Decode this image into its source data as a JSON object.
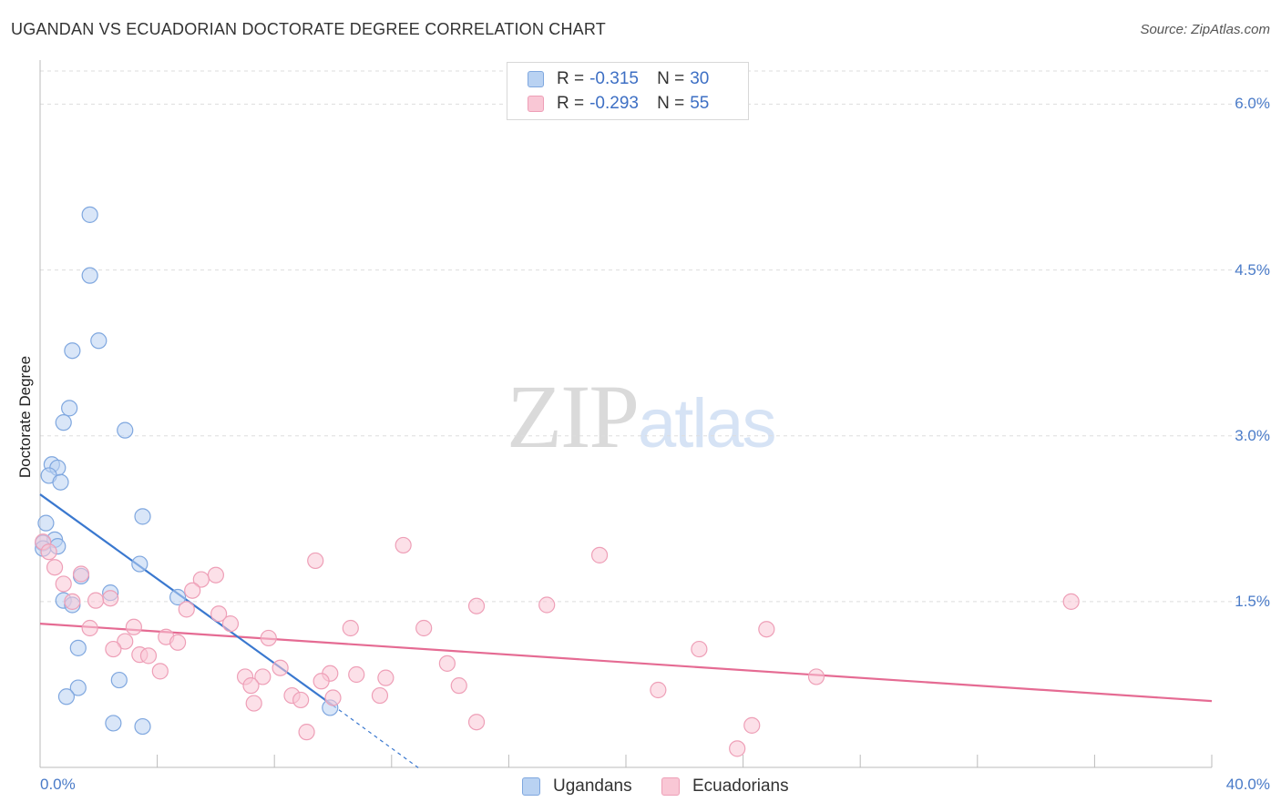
{
  "header": {
    "title": "UGANDAN VS ECUADORIAN DOCTORATE DEGREE CORRELATION CHART",
    "source": "Source: ZipAtlas.com"
  },
  "watermark": {
    "zip": "ZIP",
    "atlas": "atlas"
  },
  "legend": {
    "rows": [
      {
        "r_label": "R =",
        "r_value": "-0.315",
        "n_label": "N =",
        "n_value": "30"
      },
      {
        "r_label": "R =",
        "r_value": "-0.293",
        "n_label": "N =",
        "n_value": "55"
      }
    ],
    "series_names": [
      "Ugandans",
      "Ecuadorians"
    ]
  },
  "colors": {
    "blue_fill": "#b9d2f2",
    "blue_stroke": "#7fa7df",
    "blue_line": "#3a78cf",
    "pink_fill": "#f9c7d5",
    "pink_stroke": "#ee9fb7",
    "pink_line": "#e56b93",
    "grid": "#dddddd",
    "tick_text": "#4a7bc8"
  },
  "chart_data": {
    "type": "scatter",
    "title": "UGANDAN VS ECUADORIAN DOCTORATE DEGREE CORRELATION CHART",
    "xlabel": "",
    "ylabel": "Doctorate Degree",
    "xlim": [
      0,
      40
    ],
    "ylim": [
      0,
      6.3
    ],
    "x_tick_labels": [
      "0.0%",
      "40.0%"
    ],
    "y_ticks": [
      1.5,
      3.0,
      4.5,
      6.0
    ],
    "y_tick_labels": [
      "1.5%",
      "3.0%",
      "4.5%",
      "6.0%"
    ],
    "grid": true,
    "series": [
      {
        "name": "Ugandans",
        "color": "#7fa7df",
        "points": [
          [
            1.7,
            5.0
          ],
          [
            1.7,
            4.45
          ],
          [
            2.0,
            3.86
          ],
          [
            1.1,
            3.77
          ],
          [
            1.0,
            3.25
          ],
          [
            0.8,
            3.12
          ],
          [
            2.9,
            3.05
          ],
          [
            0.4,
            2.74
          ],
          [
            0.6,
            2.71
          ],
          [
            0.3,
            2.64
          ],
          [
            0.7,
            2.58
          ],
          [
            3.5,
            2.27
          ],
          [
            0.2,
            2.21
          ],
          [
            0.5,
            2.06
          ],
          [
            0.1,
            2.03
          ],
          [
            0.1,
            1.98
          ],
          [
            0.6,
            2.0
          ],
          [
            3.4,
            1.84
          ],
          [
            1.4,
            1.73
          ],
          [
            2.4,
            1.58
          ],
          [
            4.7,
            1.54
          ],
          [
            0.8,
            1.51
          ],
          [
            1.1,
            1.47
          ],
          [
            1.3,
            1.08
          ],
          [
            2.7,
            0.79
          ],
          [
            1.3,
            0.72
          ],
          [
            0.9,
            0.64
          ],
          [
            9.9,
            0.54
          ],
          [
            2.5,
            0.4
          ],
          [
            3.5,
            0.37
          ]
        ]
      },
      {
        "name": "Ecuadorians",
        "color": "#ee9fb7",
        "points": [
          [
            0.1,
            2.04
          ],
          [
            0.3,
            1.95
          ],
          [
            0.5,
            1.81
          ],
          [
            1.4,
            1.75
          ],
          [
            0.8,
            1.66
          ],
          [
            6.0,
            1.74
          ],
          [
            5.5,
            1.7
          ],
          [
            9.4,
            1.87
          ],
          [
            12.4,
            2.01
          ],
          [
            19.1,
            1.92
          ],
          [
            5.2,
            1.6
          ],
          [
            2.4,
            1.53
          ],
          [
            1.9,
            1.51
          ],
          [
            1.1,
            1.5
          ],
          [
            5.0,
            1.43
          ],
          [
            6.1,
            1.39
          ],
          [
            6.5,
            1.3
          ],
          [
            14.9,
            1.46
          ],
          [
            17.3,
            1.47
          ],
          [
            35.2,
            1.5
          ],
          [
            3.2,
            1.27
          ],
          [
            1.7,
            1.26
          ],
          [
            10.6,
            1.26
          ],
          [
            13.1,
            1.26
          ],
          [
            24.8,
            1.25
          ],
          [
            4.3,
            1.18
          ],
          [
            7.8,
            1.17
          ],
          [
            2.9,
            1.14
          ],
          [
            4.7,
            1.13
          ],
          [
            2.5,
            1.07
          ],
          [
            22.5,
            1.07
          ],
          [
            3.4,
            1.02
          ],
          [
            3.7,
            1.01
          ],
          [
            13.9,
            0.94
          ],
          [
            8.2,
            0.9
          ],
          [
            4.1,
            0.87
          ],
          [
            7.0,
            0.82
          ],
          [
            7.6,
            0.82
          ],
          [
            9.9,
            0.85
          ],
          [
            10.8,
            0.84
          ],
          [
            11.8,
            0.81
          ],
          [
            26.5,
            0.82
          ],
          [
            9.6,
            0.78
          ],
          [
            7.2,
            0.74
          ],
          [
            14.3,
            0.74
          ],
          [
            21.1,
            0.7
          ],
          [
            8.6,
            0.65
          ],
          [
            11.6,
            0.65
          ],
          [
            8.9,
            0.61
          ],
          [
            10.0,
            0.63
          ],
          [
            7.3,
            0.58
          ],
          [
            14.9,
            0.41
          ],
          [
            24.3,
            0.38
          ],
          [
            9.1,
            0.32
          ],
          [
            23.8,
            0.17
          ]
        ]
      }
    ],
    "trendlines": [
      {
        "series": "Ugandans",
        "x0": 0.0,
        "y0": 2.47,
        "x1": 10.0,
        "y1": 0.56,
        "dash_to_x": 13.0,
        "dash_to_y": -0.02
      },
      {
        "series": "Ecuadorians",
        "x0": 0.0,
        "y0": 1.3,
        "x1": 40.0,
        "y1": 0.6
      }
    ]
  }
}
